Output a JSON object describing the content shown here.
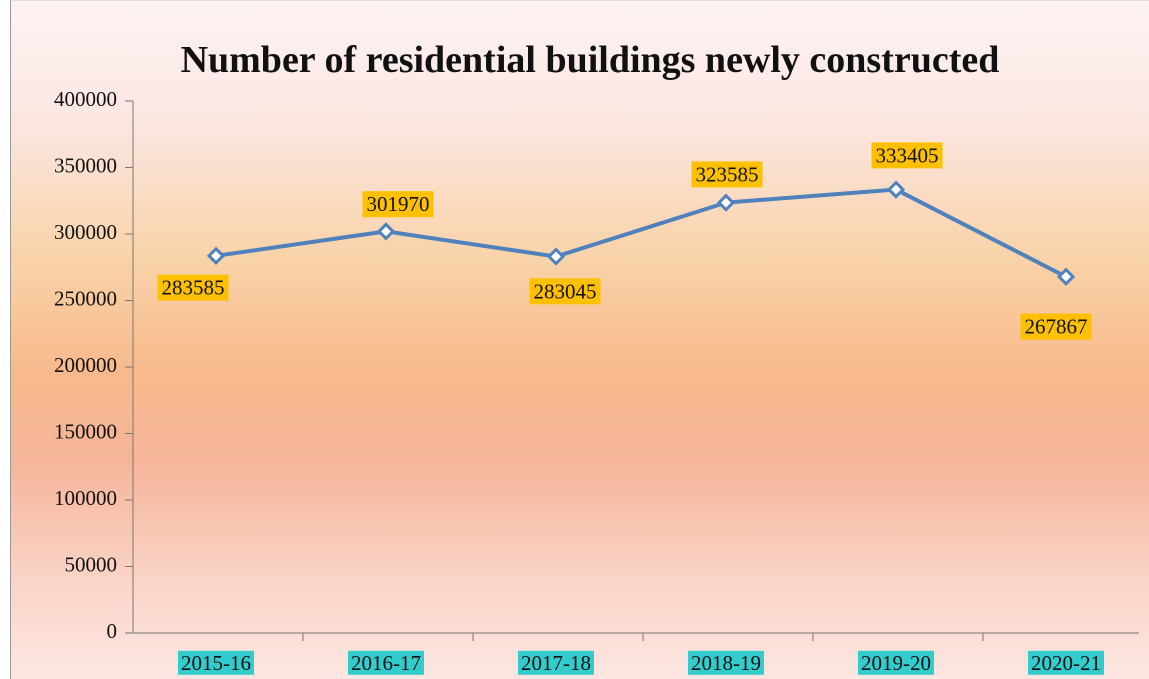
{
  "chart_data": {
    "type": "line",
    "title": "Number of residential buildings newly constructed",
    "categories": [
      "2015-16",
      "2016-17",
      "2017-18",
      "2018-19",
      "2019-20",
      "2020-21"
    ],
    "values": [
      283585,
      301970,
      283045,
      323585,
      333405,
      267867
    ],
    "color": "#4f81bd",
    "label_color": "#ffc000",
    "category_label_color": "#33cccc",
    "ylim": [
      0,
      400000
    ],
    "yticks": [
      0,
      50000,
      100000,
      150000,
      200000,
      250000,
      300000,
      350000,
      400000
    ],
    "grid": false
  }
}
